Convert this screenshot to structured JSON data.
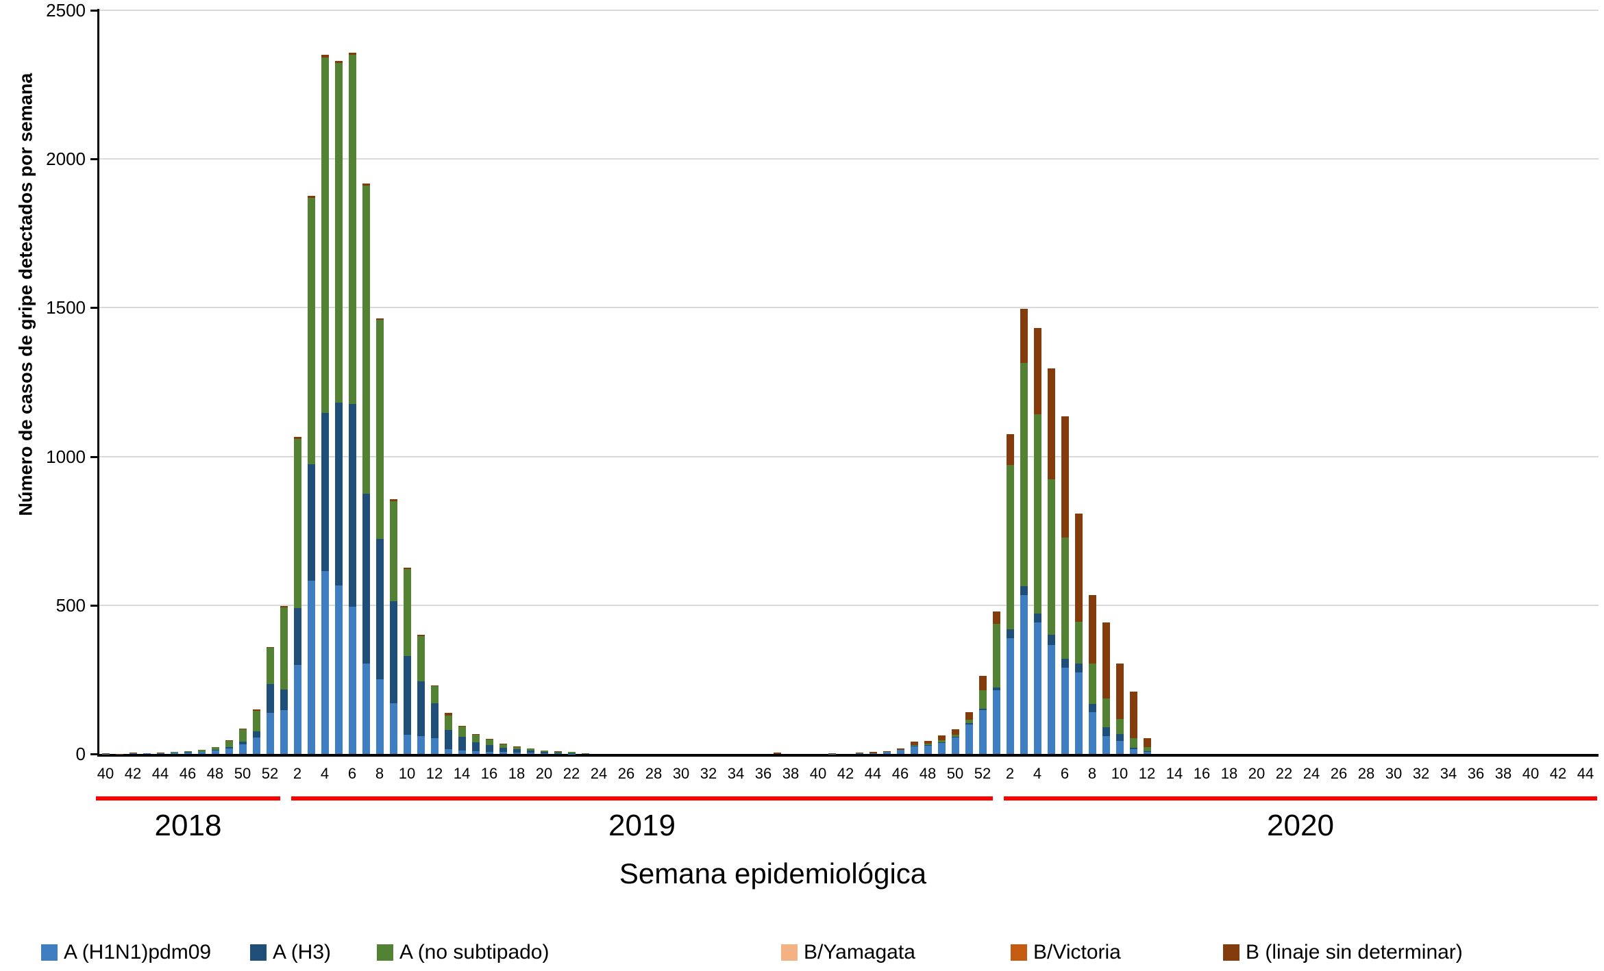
{
  "chart_data": {
    "type": "bar",
    "stacked": true,
    "xlabel": "Semana epidemiológica",
    "ylabel": "Número de casos de gripe detectados por semana",
    "ylim": [
      0,
      2500
    ],
    "yticks": [
      0,
      500,
      1000,
      1500,
      2000,
      2500
    ],
    "grid": true,
    "legend_position": "bottom",
    "year_underline_color": "#FF0000",
    "series_meta": [
      {
        "key": "h1n1",
        "label": "A (H1N1)pdm09",
        "color": "#3F7FC1"
      },
      {
        "key": "h3",
        "label": "A (H3)",
        "color": "#1F4E79"
      },
      {
        "key": "a_ns",
        "label": "A (no subtipado)",
        "color": "#548235"
      },
      {
        "key": "b_yam",
        "label": "B/Yamagata",
        "color": "#F4B183"
      },
      {
        "key": "b_vic",
        "label": "B/Victoria",
        "color": "#C55A11"
      },
      {
        "key": "b_lin",
        "label": "B (linaje sin determinar)",
        "color": "#843C0C"
      }
    ],
    "year_groups": [
      {
        "label": "2018",
        "week_start": 40,
        "week_end": 52
      },
      {
        "label": "2019",
        "week_start": 1,
        "week_end": 52
      },
      {
        "label": "2020",
        "week_start": 1,
        "week_end": 44
      }
    ],
    "xtick_every": 2,
    "columns": [
      "year",
      "week",
      "A (H1N1)pdm09",
      "A (H3)",
      "A (no subtipado)",
      "B/Yamagata",
      "B/Victoria",
      "B (linaje sin determinar)"
    ],
    "weeks": [
      [
        2018,
        40,
        1,
        0,
        0,
        0,
        0,
        2
      ],
      [
        2018,
        41,
        0,
        0,
        0,
        0,
        0,
        1
      ],
      [
        2018,
        42,
        2,
        0,
        0,
        0,
        0,
        2
      ],
      [
        2018,
        43,
        2,
        0,
        0,
        0,
        0,
        1
      ],
      [
        2018,
        44,
        3,
        0,
        0,
        0,
        0,
        2
      ],
      [
        2018,
        45,
        4,
        0,
        2,
        0,
        0,
        1
      ],
      [
        2018,
        46,
        5,
        1,
        3,
        0,
        0,
        1
      ],
      [
        2018,
        47,
        7,
        1,
        6,
        0,
        0,
        1
      ],
      [
        2018,
        48,
        11,
        2,
        10,
        0,
        0,
        1
      ],
      [
        2018,
        49,
        18,
        5,
        20,
        0,
        0,
        2
      ],
      [
        2018,
        50,
        32,
        10,
        40,
        0,
        0,
        3
      ],
      [
        2018,
        51,
        55,
        20,
        70,
        0,
        0,
        5
      ],
      [
        2018,
        52,
        138,
        98,
        120,
        0,
        0,
        4
      ],
      [
        2019,
        1,
        148,
        68,
        276,
        0,
        0,
        5
      ],
      [
        2019,
        2,
        300,
        190,
        570,
        0,
        0,
        6
      ],
      [
        2019,
        3,
        583,
        391,
        895,
        0,
        0,
        8
      ],
      [
        2019,
        4,
        615,
        531,
        1196,
        0,
        0,
        8
      ],
      [
        2019,
        5,
        567,
        614,
        1141,
        0,
        0,
        8
      ],
      [
        2019,
        6,
        494,
        682,
        1174,
        0,
        0,
        8
      ],
      [
        2019,
        7,
        304,
        571,
        1035,
        0,
        0,
        8
      ],
      [
        2019,
        8,
        250,
        472,
        737,
        0,
        0,
        6
      ],
      [
        2019,
        9,
        170,
        344,
        336,
        0,
        0,
        7
      ],
      [
        2019,
        10,
        65,
        265,
        292,
        0,
        0,
        5
      ],
      [
        2019,
        11,
        60,
        183,
        153,
        0,
        0,
        5
      ],
      [
        2019,
        12,
        53,
        117,
        58,
        0,
        0,
        3
      ],
      [
        2019,
        13,
        15,
        65,
        50,
        0,
        0,
        8
      ],
      [
        2019,
        14,
        12,
        45,
        34,
        0,
        0,
        4
      ],
      [
        2019,
        15,
        10,
        30,
        25,
        0,
        0,
        2
      ],
      [
        2019,
        16,
        8,
        22,
        18,
        0,
        0,
        2
      ],
      [
        2019,
        17,
        6,
        14,
        13,
        0,
        0,
        1
      ],
      [
        2019,
        18,
        5,
        10,
        9,
        0,
        0,
        1
      ],
      [
        2019,
        19,
        4,
        7,
        7,
        0,
        0,
        0
      ],
      [
        2019,
        20,
        2,
        4,
        6,
        0,
        0,
        0
      ],
      [
        2019,
        21,
        2,
        2,
        4,
        0,
        0,
        1
      ],
      [
        2019,
        22,
        1,
        2,
        3,
        0,
        0,
        0
      ],
      [
        2019,
        23,
        0,
        0,
        3,
        0,
        0,
        0
      ],
      [
        2019,
        37,
        0,
        0,
        0,
        0,
        0,
        4
      ],
      [
        2019,
        41,
        1,
        0,
        0,
        0,
        0,
        2
      ],
      [
        2019,
        43,
        2,
        0,
        0,
        0,
        0,
        2
      ],
      [
        2019,
        44,
        3,
        0,
        0,
        0,
        0,
        5
      ],
      [
        2019,
        45,
        6,
        0,
        0,
        0,
        0,
        4
      ],
      [
        2019,
        46,
        13,
        2,
        0,
        0,
        0,
        4
      ],
      [
        2019,
        47,
        26,
        2,
        2,
        0,
        0,
        12
      ],
      [
        2019,
        48,
        28,
        2,
        4,
        0,
        0,
        10
      ],
      [
        2019,
        49,
        38,
        2,
        5,
        0,
        0,
        18
      ],
      [
        2019,
        50,
        55,
        2,
        7,
        0,
        0,
        18
      ],
      [
        2019,
        51,
        100,
        3,
        13,
        0,
        0,
        25
      ],
      [
        2019,
        52,
        148,
        5,
        60,
        0,
        0,
        49
      ],
      [
        2020,
        1,
        215,
        8,
        215,
        0,
        0,
        42
      ],
      [
        2020,
        2,
        388,
        32,
        551,
        0,
        0,
        103
      ],
      [
        2020,
        3,
        533,
        31,
        751,
        0,
        0,
        182
      ],
      [
        2020,
        4,
        441,
        30,
        672,
        0,
        0,
        290
      ],
      [
        2020,
        5,
        365,
        35,
        523,
        0,
        0,
        372
      ],
      [
        2020,
        6,
        289,
        32,
        407,
        0,
        0,
        407
      ],
      [
        2020,
        7,
        275,
        30,
        140,
        0,
        0,
        363
      ],
      [
        2020,
        8,
        140,
        27,
        138,
        0,
        0,
        230
      ],
      [
        2020,
        9,
        59,
        30,
        98,
        0,
        0,
        254
      ],
      [
        2020,
        10,
        44,
        22,
        51,
        0,
        0,
        188
      ],
      [
        2020,
        11,
        15,
        6,
        32,
        0,
        0,
        157
      ],
      [
        2020,
        12,
        6,
        3,
        15,
        0,
        0,
        28
      ]
    ]
  }
}
